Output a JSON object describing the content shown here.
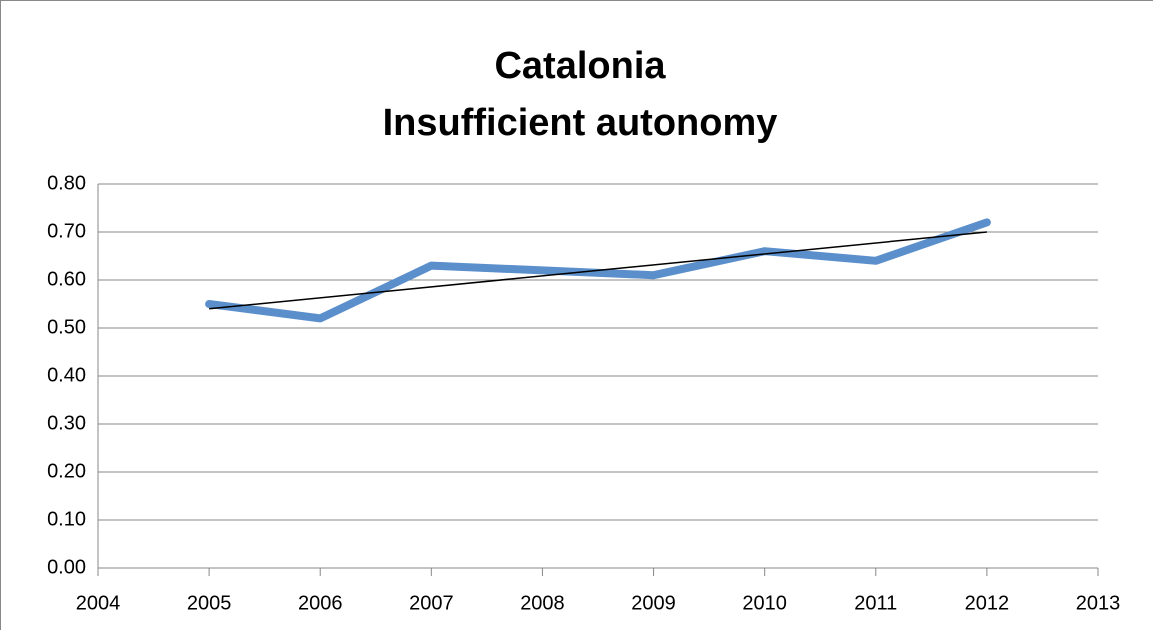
{
  "chart_data": {
    "type": "line",
    "title": [
      "Catalonia",
      "Insufficient autonomy"
    ],
    "x": [
      2005,
      2006,
      2007,
      2008,
      2009,
      2010,
      2011,
      2012
    ],
    "series": [
      {
        "color": "#5b8fcb",
        "values": [
          0.55,
          0.52,
          0.63,
          0.62,
          0.61,
          0.66,
          0.64,
          0.72
        ]
      }
    ],
    "trendline": {
      "x": [
        2005,
        2012
      ],
      "values": [
        0.54,
        0.7
      ],
      "color": "#000000"
    },
    "xlim": [
      2004,
      2013
    ],
    "xticks": [
      2004,
      2005,
      2006,
      2007,
      2008,
      2009,
      2010,
      2011,
      2012,
      2013
    ],
    "ylim": [
      0,
      0.8
    ],
    "yticks": [
      {
        "value": 0,
        "label": "0.00"
      },
      {
        "value": 0.1,
        "label": "0.10"
      },
      {
        "value": 0.2,
        "label": "0.20"
      },
      {
        "value": 0.3,
        "label": "0.30"
      },
      {
        "value": 0.4,
        "label": "0.40"
      },
      {
        "value": 0.5,
        "label": "0.50"
      },
      {
        "value": 0.6,
        "label": "0.60"
      },
      {
        "value": 0.7,
        "label": "0.70"
      },
      {
        "value": 0.8,
        "label": "0.80"
      }
    ],
    "grid": true
  }
}
